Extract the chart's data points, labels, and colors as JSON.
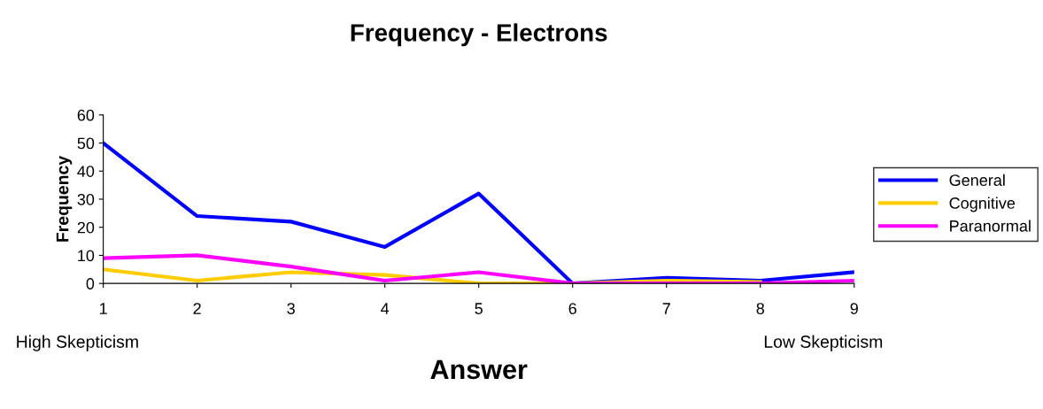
{
  "chart_data": {
    "type": "line",
    "title": "Frequency - Electrons",
    "xlabel": "Answer",
    "ylabel": "Frequency",
    "x": [
      1,
      2,
      3,
      4,
      5,
      6,
      7,
      8,
      9
    ],
    "series": [
      {
        "name": "General",
        "color": "#0000ff",
        "values": [
          50,
          24,
          22,
          13,
          32,
          0,
          2,
          1,
          4
        ]
      },
      {
        "name": "Cognitive",
        "color": "#ffcc00",
        "values": [
          5,
          1,
          4,
          3,
          0,
          0,
          1,
          0.5,
          null
        ]
      },
      {
        "name": "Paranormal",
        "color": "#ff00ff",
        "values": [
          9,
          10,
          6,
          1,
          4,
          0,
          0,
          0,
          1
        ]
      }
    ],
    "xlim": [
      1,
      9
    ],
    "xticks": [
      1,
      2,
      3,
      4,
      5,
      6,
      7,
      8,
      9
    ],
    "ylim": [
      0,
      60
    ],
    "yticks": [
      0,
      10,
      20,
      30,
      40,
      50,
      60
    ],
    "annotations": [
      "High Skepticism",
      "Low Skepticism"
    ],
    "legend": "right",
    "grid": false,
    "marker": "none",
    "line_style": "solid"
  }
}
